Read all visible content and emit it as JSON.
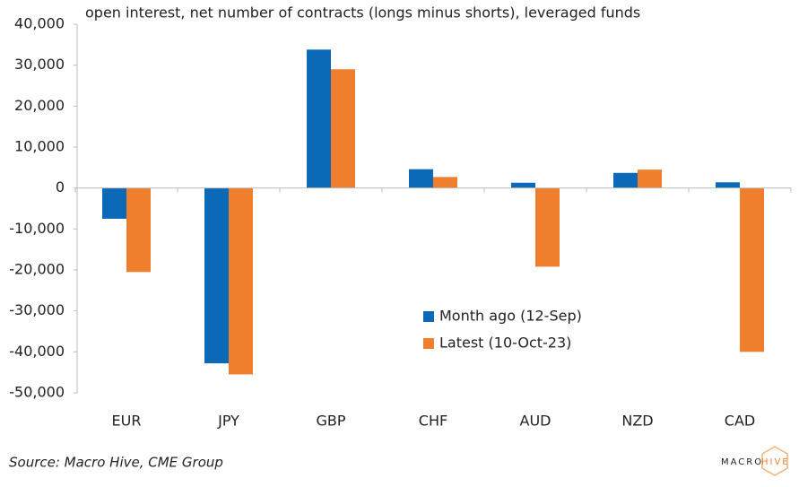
{
  "chart_data": {
    "type": "bar",
    "title": "open interest, net number of contracts (longs minus shorts), leveraged funds",
    "categories": [
      "EUR",
      "JPY",
      "GBP",
      "CHF",
      "AUD",
      "NZD",
      "CAD"
    ],
    "series": [
      {
        "name": "Month ago (12-Sep)",
        "color": "#0b69b7",
        "values": [
          -7500,
          -42800,
          33800,
          4600,
          1300,
          3700,
          1400
        ]
      },
      {
        "name": "Latest (10-Oct-23)",
        "color": "#f07f2d",
        "values": [
          -20500,
          -45500,
          29000,
          2700,
          -19200,
          4500,
          -40000
        ]
      }
    ],
    "ylim": [
      -50000,
      40000
    ],
    "yticks": [
      {
        "value": 40000,
        "label": "40,000"
      },
      {
        "value": 30000,
        "label": "30,000"
      },
      {
        "value": 20000,
        "label": "20,000"
      },
      {
        "value": 10000,
        "label": "10,000"
      },
      0,
      {
        "value": -10000,
        "label": "-10,000"
      },
      {
        "value": -20000,
        "label": "-20,000"
      },
      {
        "value": -30000,
        "label": "-30,000"
      },
      {
        "value": -40000,
        "label": "-40,000"
      },
      {
        "value": -50000,
        "label": "-50,000"
      }
    ],
    "grid": false,
    "source": "Source: Macro Hive, CME Group",
    "brand": [
      "MACRO",
      "HIVE"
    ]
  }
}
